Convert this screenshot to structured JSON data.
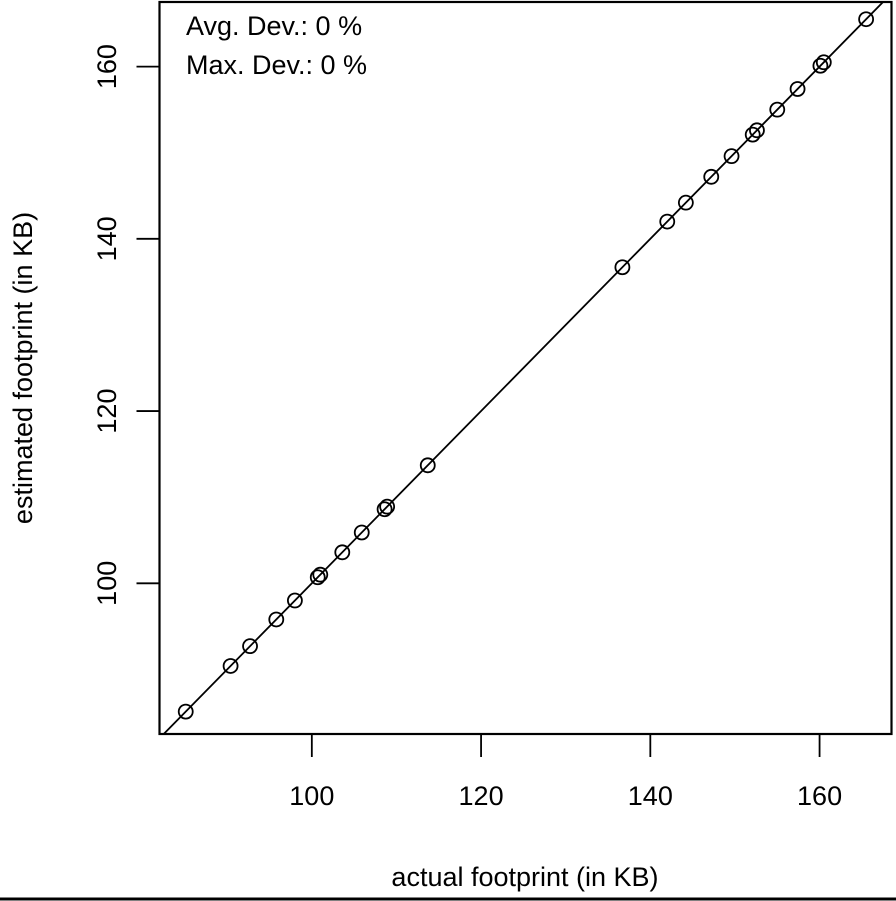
{
  "chart_data": {
    "type": "scatter",
    "title": "",
    "xlabel": "actual footprint (in KB)",
    "ylabel": "estimated footprint (in KB)",
    "xlim": [
      82,
      168.5
    ],
    "ylim": [
      82.5,
      167.5
    ],
    "x_ticks": [
      "100",
      "120",
      "140",
      "160"
    ],
    "y_ticks": [
      "100",
      "120",
      "140",
      "160"
    ],
    "grid": false,
    "reference_line": "y = x",
    "annotations": [
      "Avg. Dev.: 0 %",
      "Max. Dev.: 0 %"
    ],
    "points": [
      {
        "x": 85.1,
        "y": 85.1
      },
      {
        "x": 90.4,
        "y": 90.4
      },
      {
        "x": 92.7,
        "y": 92.7
      },
      {
        "x": 95.8,
        "y": 95.8
      },
      {
        "x": 98.0,
        "y": 98.0
      },
      {
        "x": 100.7,
        "y": 100.7
      },
      {
        "x": 101.0,
        "y": 101.0
      },
      {
        "x": 103.6,
        "y": 103.6
      },
      {
        "x": 105.9,
        "y": 105.9
      },
      {
        "x": 108.6,
        "y": 108.6
      },
      {
        "x": 108.9,
        "y": 108.9
      },
      {
        "x": 113.7,
        "y": 113.7
      },
      {
        "x": 136.7,
        "y": 136.7
      },
      {
        "x": 142.0,
        "y": 142.0
      },
      {
        "x": 144.2,
        "y": 144.2
      },
      {
        "x": 147.2,
        "y": 147.2
      },
      {
        "x": 149.6,
        "y": 149.6
      },
      {
        "x": 152.1,
        "y": 152.1
      },
      {
        "x": 152.6,
        "y": 152.6
      },
      {
        "x": 155.0,
        "y": 155.0
      },
      {
        "x": 157.4,
        "y": 157.4
      },
      {
        "x": 160.1,
        "y": 160.1
      },
      {
        "x": 160.5,
        "y": 160.5
      },
      {
        "x": 165.5,
        "y": 165.5
      }
    ]
  }
}
